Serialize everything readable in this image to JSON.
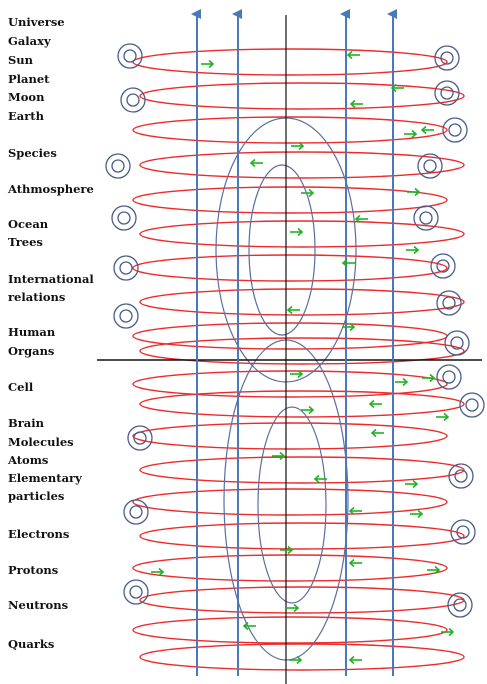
{
  "labels": [
    "Universe",
    "Galaxy",
    "Sun",
    "Planet",
    "Moon",
    "Earth",
    "Species",
    "Athmosphere",
    "Ocean",
    "Trees",
    "International",
    "relations",
    "Human",
    "Organs",
    "Cell",
    "Brain",
    "Molecules",
    "Atoms",
    "Elementary",
    "particles",
    "Electrons",
    "Protons",
    "Neutrons",
    "Quarks"
  ],
  "colors": {
    "rings": "#ee2a2a",
    "axes": "#4a78b8",
    "loops": "#5a6fa0",
    "arrows": "#22b024",
    "lines": "#111111",
    "coils": "#4a5c88"
  }
}
